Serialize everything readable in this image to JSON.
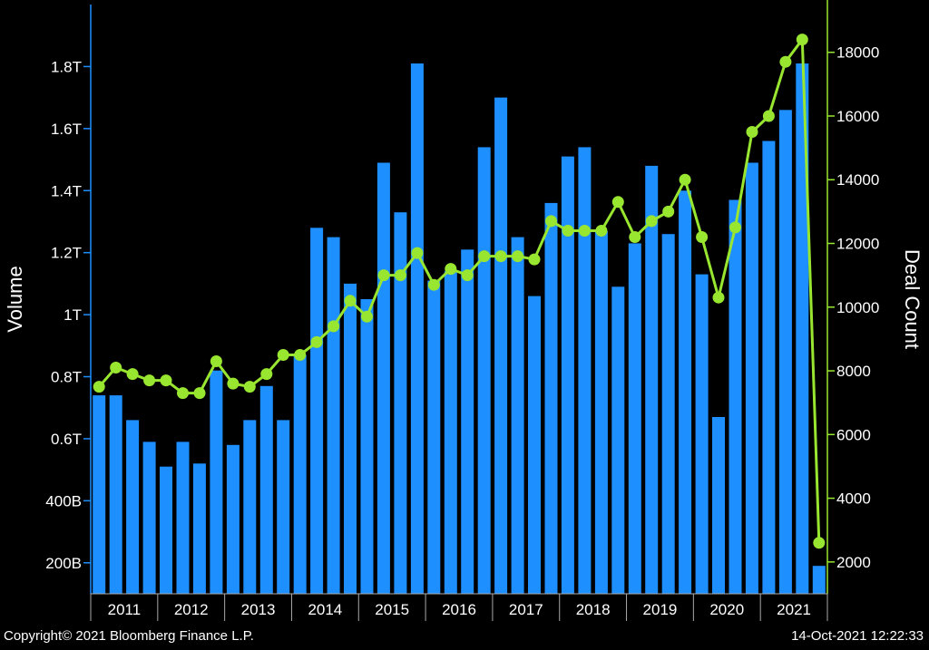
{
  "chart_data": {
    "type": "bar+line",
    "x_tick_labels": [
      "2011",
      "2012",
      "2013",
      "2014",
      "2015",
      "2016",
      "2017",
      "2018",
      "2019",
      "2020",
      "2021"
    ],
    "quarters_per_year": 4,
    "left_axis": {
      "label": "Volume",
      "unit": "USD (T = trillion, B = billion)",
      "range": [
        0.1,
        2.0
      ],
      "ticks": [
        0.2,
        0.4,
        0.6,
        0.8,
        1.0,
        1.2,
        1.4,
        1.6,
        1.8
      ],
      "tick_labels": [
        "200B",
        "400B",
        "0.6T",
        "0.8T",
        "1T",
        "1.2T",
        "1.4T",
        "1.6T",
        "1.8T"
      ]
    },
    "right_axis": {
      "label": "Deal Count",
      "range": [
        1000,
        19500
      ],
      "ticks": [
        2000,
        4000,
        6000,
        8000,
        10000,
        12000,
        14000,
        16000,
        18000
      ],
      "tick_labels": [
        "2000",
        "4000",
        "6000",
        "8000",
        "10000",
        "12000",
        "14000",
        "16000",
        "18000"
      ]
    },
    "series": [
      {
        "kind": "bar",
        "axis": "left",
        "color": "#1e8fff",
        "values": [
          0.74,
          0.74,
          0.66,
          0.59,
          0.51,
          0.59,
          0.52,
          0.82,
          0.58,
          0.66,
          0.77,
          0.66,
          0.87,
          1.28,
          1.25,
          1.1,
          1.05,
          1.49,
          1.33,
          1.81,
          1.11,
          1.14,
          1.21,
          1.54,
          1.7,
          1.25,
          1.06,
          1.36,
          1.51,
          1.54,
          1.27,
          1.09,
          1.23,
          1.48,
          1.26,
          1.4,
          1.13,
          0.67,
          1.37,
          1.49,
          1.56,
          1.66,
          1.81,
          0.19
        ]
      },
      {
        "kind": "line",
        "axis": "right",
        "color": "#99e630",
        "values": [
          7500,
          8100,
          7900,
          7700,
          7700,
          7300,
          7300,
          8300,
          7600,
          7500,
          7900,
          8500,
          8500,
          8900,
          9400,
          10200,
          9700,
          11000,
          11000,
          11700,
          10700,
          11200,
          11000,
          11600,
          11600,
          11600,
          11500,
          12700,
          12400,
          12400,
          12400,
          13300,
          12200,
          12700,
          13000,
          14000,
          12200,
          10300,
          12500,
          15500,
          16000,
          17700,
          18400,
          2600
        ]
      }
    ],
    "legend": "none",
    "grid": false
  },
  "footer": {
    "copyright": "Copyright© 2021 Bloomberg Finance L.P.",
    "timestamp": "14-Oct-2021 12:22:33"
  },
  "colors": {
    "background": "#000000",
    "left_axis": "#1e8fff",
    "right_axis": "#99e630",
    "text": "#ffffff"
  }
}
